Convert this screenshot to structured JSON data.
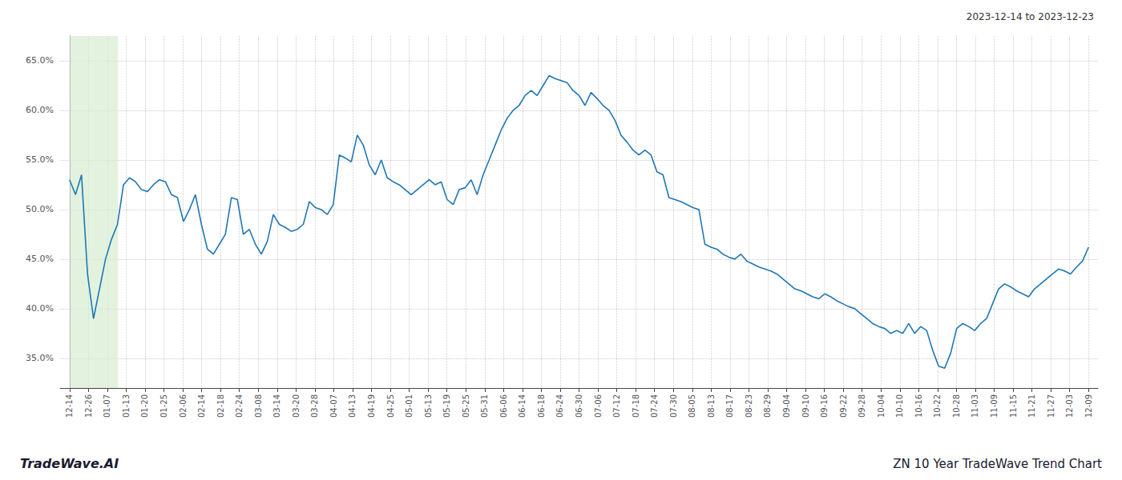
{
  "chart_data": {
    "type": "line",
    "title": "ZN 10 Year TradeWave Trend Chart",
    "subtitle": "2023-12-14 to 2023-12-23",
    "annotations": [
      "TradeWave.AI"
    ],
    "color": "#1f77b4",
    "grid": true,
    "xlim": [
      -0.5,
      54.5
    ],
    "xticks": [
      {
        "value": 0,
        "label": "12-14"
      },
      {
        "value": 1,
        "label": "12-26"
      },
      {
        "value": 2,
        "label": "01-07"
      },
      {
        "value": 3,
        "label": "01-13"
      },
      {
        "value": 4,
        "label": "01-20"
      },
      {
        "value": 5,
        "label": "01-25"
      },
      {
        "value": 6,
        "label": "02-06"
      },
      {
        "value": 7,
        "label": "02-14"
      },
      {
        "value": 8,
        "label": "02-18"
      },
      {
        "value": 9,
        "label": "02-24"
      },
      {
        "value": 10,
        "label": "03-08"
      },
      {
        "value": 11,
        "label": "03-14"
      },
      {
        "value": 12,
        "label": "03-20"
      },
      {
        "value": 13,
        "label": "03-28"
      },
      {
        "value": 14,
        "label": "04-07"
      },
      {
        "value": 15,
        "label": "04-13"
      },
      {
        "value": 16,
        "label": "04-19"
      },
      {
        "value": 17,
        "label": "04-25"
      },
      {
        "value": 18,
        "label": "05-01"
      },
      {
        "value": 19,
        "label": "05-13"
      },
      {
        "value": 20,
        "label": "05-19"
      },
      {
        "value": 21,
        "label": "05-25"
      },
      {
        "value": 22,
        "label": "05-31"
      },
      {
        "value": 23,
        "label": "06-06"
      },
      {
        "value": 24,
        "label": "06-14"
      },
      {
        "value": 25,
        "label": "06-18"
      },
      {
        "value": 26,
        "label": "06-24"
      },
      {
        "value": 27,
        "label": "06-30"
      },
      {
        "value": 28,
        "label": "07-06"
      },
      {
        "value": 29,
        "label": "07-12"
      },
      {
        "value": 30,
        "label": "07-18"
      },
      {
        "value": 31,
        "label": "07-24"
      },
      {
        "value": 32,
        "label": "07-30"
      },
      {
        "value": 33,
        "label": "08-05"
      },
      {
        "value": 34,
        "label": "08-13"
      },
      {
        "value": 35,
        "label": "08-17"
      },
      {
        "value": 36,
        "label": "08-23"
      },
      {
        "value": 37,
        "label": "08-29"
      },
      {
        "value": 38,
        "label": "09-04"
      },
      {
        "value": 39,
        "label": "09-10"
      },
      {
        "value": 40,
        "label": "09-16"
      },
      {
        "value": 41,
        "label": "09-22"
      },
      {
        "value": 42,
        "label": "09-28"
      },
      {
        "value": 43,
        "label": "10-04"
      },
      {
        "value": 44,
        "label": "10-10"
      },
      {
        "value": 45,
        "label": "10-16"
      },
      {
        "value": 46,
        "label": "10-22"
      },
      {
        "value": 47,
        "label": "10-28"
      },
      {
        "value": 48,
        "label": "11-03"
      },
      {
        "value": 49,
        "label": "11-09"
      },
      {
        "value": 50,
        "label": "11-15"
      },
      {
        "value": 51,
        "label": "11-21"
      },
      {
        "value": 52,
        "label": "11-27"
      },
      {
        "value": 53,
        "label": "12-03"
      },
      {
        "value": 54,
        "label": "12-09"
      }
    ],
    "ylim": [
      32.0,
      67.5
    ],
    "yticks": [
      {
        "value": 35.0,
        "label": "35.0%"
      },
      {
        "value": 40.0,
        "label": "40.0%"
      },
      {
        "value": 45.0,
        "label": "45.0%"
      },
      {
        "value": 50.0,
        "label": "50.0%"
      },
      {
        "value": 55.0,
        "label": "55.0%"
      },
      {
        "value": 60.0,
        "label": "60.0%"
      },
      {
        "value": 65.0,
        "label": "65.0%"
      }
    ],
    "shaded_span": {
      "x": [
        0,
        2.5731
      ],
      "color": "#d6ecd2"
    },
    "x": [
      0,
      0.3176,
      0.6353,
      0.9529,
      1.2706,
      1.5882,
      1.9059,
      2.2235,
      2.5412,
      2.8588,
      3.1765,
      3.4941,
      3.8118,
      4.1294,
      4.4471,
      4.7647,
      5.0824,
      5.4,
      5.7176,
      6.0353,
      6.3529,
      6.6706,
      6.9882,
      7.3059,
      7.6235,
      7.9412,
      8.2588,
      8.5765,
      8.8941,
      9.2118,
      9.5294,
      9.8471,
      10.1647,
      10.4824,
      10.8,
      11.1176,
      11.4353,
      11.7529,
      12.0706,
      12.3882,
      12.7059,
      13.0235,
      13.3412,
      13.6588,
      13.9765,
      14.2941,
      14.6118,
      14.9294,
      15.2471,
      15.5647,
      15.8824,
      16.2,
      16.5176,
      16.8353,
      17.1529,
      17.4706,
      17.7882,
      18.1059,
      18.4235,
      18.7412,
      19.0588,
      19.3765,
      19.6941,
      20.0118,
      20.3294,
      20.6471,
      20.9647,
      21.2824,
      21.6,
      21.9176,
      22.2353,
      22.5529,
      22.8706,
      23.1882,
      23.5059,
      23.8235,
      24.1412,
      24.4588,
      24.7765,
      25.0941,
      25.4118,
      25.7294,
      26.0471,
      26.3647,
      26.6824,
      27,
      27.3176,
      27.6353,
      27.9529,
      28.2706,
      28.5882,
      28.9059,
      29.2235,
      29.5412,
      29.8588,
      30.1765,
      30.4941,
      30.8118,
      31.1294,
      31.4471,
      31.7647,
      32.0824,
      32.4,
      32.7176,
      33.0353,
      33.3529,
      33.6706,
      33.9882,
      34.3059,
      34.6235,
      34.9412,
      35.2588,
      35.5765,
      35.8941,
      36.2118,
      36.5294,
      36.8471,
      37.1647,
      37.4824,
      37.8,
      38.1176,
      38.4353,
      38.7529,
      39.0706,
      39.3882,
      39.7059,
      40.0235,
      40.3412,
      40.6588,
      40.9765,
      41.2941,
      41.6118,
      41.9294,
      42.2471,
      42.5647,
      42.8824,
      43.2,
      43.5176,
      43.8353,
      44.1529,
      44.4706,
      44.7882,
      45.1059,
      45.4235,
      45.7412,
      46.0588,
      46.3765,
      46.6941,
      47.0118,
      47.3294,
      47.6471,
      47.9647,
      48.2824,
      48.6,
      48.9176,
      49.2353,
      49.5529,
      49.8706,
      50.1882,
      50.5059,
      50.8235,
      51.1412,
      51.4588,
      51.7765,
      52.0941,
      52.4118,
      52.7294,
      53.0471,
      53.3647,
      53.6824,
      54
    ],
    "values": [
      53.0,
      51.5,
      53.5,
      43.5,
      39.0,
      42.0,
      45.0,
      47.0,
      48.5,
      52.5,
      53.2,
      52.8,
      52.0,
      51.8,
      52.5,
      53.0,
      52.8,
      51.5,
      51.2,
      48.8,
      50.0,
      51.5,
      48.5,
      46.0,
      45.5,
      46.5,
      47.5,
      51.2,
      51.0,
      47.5,
      48.0,
      46.5,
      45.5,
      46.8,
      49.5,
      48.5,
      48.2,
      47.8,
      48.0,
      48.5,
      50.8,
      50.2,
      50.0,
      49.5,
      50.5,
      55.5,
      55.2,
      54.8,
      57.5,
      56.5,
      54.5,
      53.5,
      55.0,
      53.2,
      52.8,
      52.5,
      52.0,
      51.5,
      52.0,
      52.5,
      53.0,
      52.5,
      52.8,
      51.0,
      50.5,
      52.0,
      52.2,
      53.0,
      51.5,
      53.5,
      55.0,
      56.5,
      58.0,
      59.2,
      60.0,
      60.5,
      61.5,
      62.0,
      61.5,
      62.5,
      63.5,
      63.2,
      63.0,
      62.8,
      62.0,
      61.5,
      60.5,
      61.8,
      61.2,
      60.5,
      60.0,
      59.0,
      57.5,
      56.8,
      56.0,
      55.5,
      56.0,
      55.5,
      53.8,
      53.5,
      51.2,
      51.0,
      50.8,
      50.5,
      50.2,
      50.0,
      46.5,
      46.2,
      46.0,
      45.5,
      45.2,
      45.0,
      45.5,
      44.8,
      44.5,
      44.2,
      44.0,
      43.8,
      43.5,
      43.0,
      42.5,
      42.0,
      41.8,
      41.5,
      41.2,
      41.0,
      41.5,
      41.2,
      40.8,
      40.5,
      40.2,
      40.0,
      39.5,
      39.0,
      38.5,
      38.2,
      38.0,
      37.5,
      37.8,
      37.5,
      38.5,
      37.5,
      38.2,
      37.8,
      35.8,
      34.2,
      34.0,
      35.5,
      38.0,
      38.5,
      38.2,
      37.8,
      38.5,
      39.0,
      40.5,
      42.0,
      42.5,
      42.2,
      41.8,
      41.5,
      41.2,
      42.0,
      42.5,
      43.0,
      43.5,
      44.0,
      43.8,
      43.5,
      44.2,
      44.8,
      46.2
    ]
  }
}
